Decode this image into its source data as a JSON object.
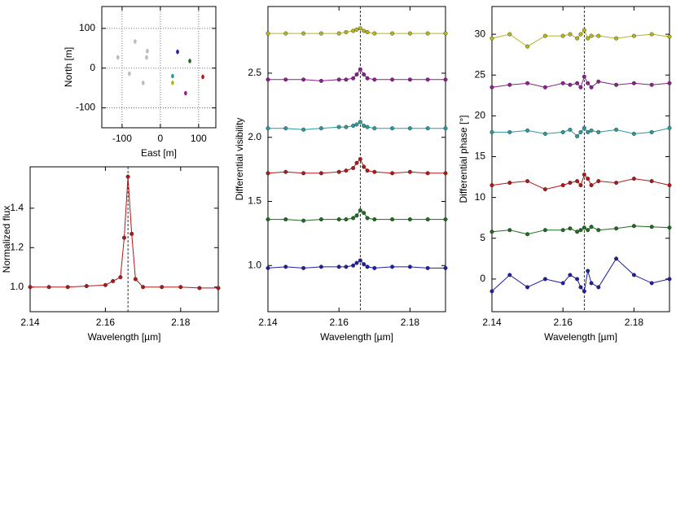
{
  "chart_data": [
    {
      "type": "scatter",
      "xlabel": "East [m]",
      "ylabel": "North [m]",
      "xlim": [
        -153,
        145
      ],
      "ylim": [
        -150,
        155
      ],
      "xticks": [
        -100,
        0,
        100
      ],
      "yticks": [
        -100,
        0,
        100
      ],
      "grid": true,
      "series": [
        {
          "color": "#bbbbbb",
          "x": [
            -111,
            -66,
            -34,
            -36,
            -81,
            -45
          ],
          "values": [
            27,
            67,
            43,
            27,
            -14,
            -37
          ]
        },
        {
          "color": "#1f1fa0",
          "x": [
            45
          ],
          "values": [
            41
          ]
        },
        {
          "color": "#1f6b1f",
          "x": [
            77
          ],
          "values": [
            18
          ]
        },
        {
          "color": "#b01818",
          "x": [
            111
          ],
          "values": [
            -22
          ]
        },
        {
          "color": "#2a9a9a",
          "x": [
            32
          ],
          "values": [
            -20
          ]
        },
        {
          "color": "#b5b51f",
          "x": [
            32
          ],
          "values": [
            -37
          ]
        },
        {
          "color": "#8b1f8b",
          "x": [
            66
          ],
          "values": [
            -63
          ]
        }
      ]
    },
    {
      "type": "line",
      "xlabel": "Wavelength [µm]",
      "ylabel": "Normalized flux",
      "xlim": [
        2.14,
        2.19
      ],
      "ylim": [
        0.875,
        1.61
      ],
      "xticks": [
        2.14,
        2.16,
        2.18
      ],
      "yticks": [
        {
          "value": 1,
          "label": "1.0"
        },
        {
          "value": 1.2,
          "label": "1.2"
        },
        {
          "value": 1.4,
          "label": "1.4"
        }
      ],
      "reference_x": 2.166,
      "grid": false,
      "x": [
        2.14,
        2.145,
        2.15,
        2.155,
        2.16,
        2.162,
        2.164,
        2.165,
        2.166,
        2.167,
        2.168,
        2.17,
        2.175,
        2.18,
        2.185,
        2.19
      ],
      "series": [
        {
          "color": "#b01818",
          "values": [
            1.0,
            1.0,
            1.0,
            1.005,
            1.01,
            1.03,
            1.05,
            1.25,
            1.56,
            1.27,
            1.04,
            1.0,
            1.0,
            1.0,
            0.995,
            0.995
          ]
        }
      ]
    },
    {
      "type": "line",
      "xlabel": "Wavelength [µm]",
      "ylabel": "Differential visibility",
      "xlim": [
        2.14,
        2.19
      ],
      "ylim": [
        0.64,
        3.02
      ],
      "xticks": [
        2.14,
        2.16,
        2.18
      ],
      "yticks": [
        {
          "value": 1,
          "label": "1.0"
        },
        1.5,
        {
          "value": 2,
          "label": "2.0"
        },
        2.5
      ],
      "reference_x": 2.166,
      "grid": false,
      "x": [
        2.14,
        2.145,
        2.15,
        2.155,
        2.16,
        2.162,
        2.164,
        2.165,
        2.166,
        2.167,
        2.168,
        2.17,
        2.175,
        2.18,
        2.185,
        2.19
      ],
      "series": [
        {
          "color": "#1f1fa0",
          "values": [
            0.98,
            0.99,
            0.98,
            0.99,
            0.99,
            0.99,
            1.0,
            1.02,
            1.04,
            1.01,
            0.99,
            0.98,
            0.99,
            0.99,
            0.98,
            0.98
          ]
        },
        {
          "color": "#1f6b1f",
          "values": [
            1.36,
            1.36,
            1.35,
            1.36,
            1.36,
            1.36,
            1.37,
            1.39,
            1.43,
            1.41,
            1.37,
            1.36,
            1.36,
            1.36,
            1.36,
            1.36
          ]
        },
        {
          "color": "#b01818",
          "values": [
            1.72,
            1.73,
            1.72,
            1.72,
            1.73,
            1.74,
            1.76,
            1.8,
            1.83,
            1.77,
            1.74,
            1.73,
            1.72,
            1.73,
            1.72,
            1.72
          ]
        },
        {
          "color": "#2a9a9a",
          "values": [
            2.07,
            2.07,
            2.06,
            2.07,
            2.08,
            2.08,
            2.09,
            2.1,
            2.12,
            2.09,
            2.08,
            2.07,
            2.07,
            2.07,
            2.07,
            2.07
          ]
        },
        {
          "color": "#8b1f8b",
          "values": [
            2.45,
            2.45,
            2.45,
            2.44,
            2.45,
            2.45,
            2.46,
            2.49,
            2.53,
            2.49,
            2.46,
            2.45,
            2.45,
            2.45,
            2.45,
            2.45
          ]
        },
        {
          "color": "#b5b51f",
          "values": [
            2.81,
            2.81,
            2.81,
            2.81,
            2.81,
            2.82,
            2.83,
            2.84,
            2.85,
            2.83,
            2.82,
            2.81,
            2.81,
            2.81,
            2.81,
            2.81
          ]
        }
      ]
    },
    {
      "type": "line",
      "xlabel": "Wavelength [µm]",
      "ylabel": "Differential phase [°]",
      "xlim": [
        2.14,
        2.19
      ],
      "ylim": [
        -4,
        33.4
      ],
      "xticks": [
        2.14,
        2.16,
        2.18
      ],
      "yticks": [
        0,
        5,
        10,
        15,
        20,
        25,
        30
      ],
      "reference_x": 2.166,
      "grid": false,
      "x": [
        2.14,
        2.145,
        2.15,
        2.155,
        2.16,
        2.162,
        2.164,
        2.165,
        2.166,
        2.167,
        2.168,
        2.17,
        2.175,
        2.18,
        2.185,
        2.19
      ],
      "series": [
        {
          "color": "#1f1fa0",
          "values": [
            -1.5,
            0.5,
            -1,
            0,
            -0.5,
            0.5,
            0,
            -1,
            -1.5,
            1,
            -0.5,
            -1,
            2.5,
            0.5,
            -0.5,
            0
          ]
        },
        {
          "color": "#1f6b1f",
          "values": [
            5.8,
            6,
            5.5,
            6,
            6,
            6.2,
            5.8,
            6,
            6.3,
            6,
            6.4,
            6,
            6.2,
            6.5,
            6.4,
            6.3
          ]
        },
        {
          "color": "#b01818",
          "values": [
            11.5,
            11.8,
            12,
            11,
            11.5,
            11.8,
            12,
            11.5,
            12.8,
            12.3,
            11.5,
            12,
            11.8,
            12.3,
            12,
            11.5
          ]
        },
        {
          "color": "#2a9a9a",
          "values": [
            18,
            18,
            18.2,
            17.8,
            18,
            18.3,
            17.5,
            18,
            18.5,
            18,
            18.2,
            18,
            18.3,
            17.8,
            18,
            18.5
          ]
        },
        {
          "color": "#8b1f8b",
          "values": [
            23.5,
            23.8,
            24,
            23.5,
            24,
            23.8,
            24,
            23.5,
            24.8,
            24,
            23.5,
            24.2,
            23.8,
            24,
            23.8,
            24
          ]
        },
        {
          "color": "#b5b51f",
          "values": [
            29.5,
            30,
            28.5,
            29.8,
            29.8,
            30,
            29.5,
            30,
            30.5,
            29.5,
            29.8,
            29.8,
            29.5,
            29.8,
            30,
            29.7
          ]
        }
      ]
    }
  ]
}
